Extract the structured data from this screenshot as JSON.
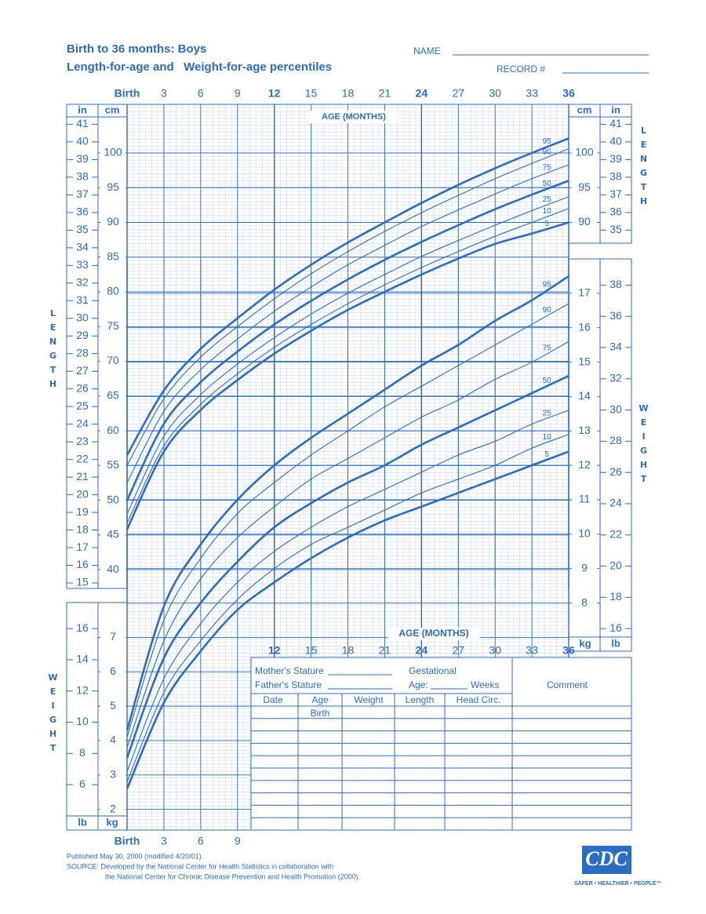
{
  "header": {
    "title": "Birth to 36 months: Boys",
    "subtitle": "Length-for-age and   Weight-for-age percentiles",
    "name_label": "NAME",
    "record_label": "RECORD #"
  },
  "chart_data": [
    {
      "type": "line",
      "x_label": "AGE (MONTHS)",
      "y_label": "LENGTH",
      "y_unit": "cm",
      "y2_unit": "in",
      "x": [
        0,
        3,
        6,
        9,
        12,
        15,
        18,
        21,
        24,
        27,
        30,
        33,
        36
      ],
      "xlim": [
        0,
        36
      ],
      "xticks": [
        {
          "value": 0,
          "label": "Birth"
        },
        3,
        6,
        9,
        12,
        15,
        18,
        21,
        24,
        27,
        30,
        33,
        36
      ],
      "ylim": [
        37.3,
        107.0
      ],
      "yticks": [
        40,
        45,
        50,
        55,
        60,
        65,
        70,
        75,
        80,
        85,
        90,
        95,
        100
      ],
      "yticks_right": [
        90,
        95,
        100
      ],
      "y2lim": [
        14.69,
        42.13
      ],
      "y2ticks": [
        15,
        16,
        17,
        18,
        19,
        20,
        21,
        22,
        23,
        24,
        25,
        26,
        27,
        28,
        29,
        30,
        31,
        32,
        33,
        34,
        35,
        36,
        37,
        38,
        39,
        40,
        41
      ],
      "y2ticks_right": [
        35,
        36,
        37,
        38,
        39,
        40,
        41
      ],
      "grid": true,
      "series": [
        {
          "name": "95",
          "color": "#2b6cc4",
          "bold": true,
          "values": [
            56.5,
            65.8,
            71.8,
            76.2,
            80.3,
            83.9,
            87.1,
            90.0,
            92.8,
            95.4,
            97.8,
            100.0,
            102.1
          ]
        },
        {
          "name": "90",
          "color": "#2b6cc4",
          "bold": false,
          "values": [
            55.0,
            64.6,
            70.6,
            75.0,
            79.0,
            82.6,
            85.8,
            88.7,
            91.4,
            93.9,
            96.3,
            98.5,
            100.6
          ]
        },
        {
          "name": "75",
          "color": "#2b6cc4",
          "bold": false,
          "values": [
            52.5,
            62.8,
            68.8,
            73.2,
            77.2,
            80.7,
            83.9,
            86.7,
            89.4,
            91.8,
            94.1,
            96.3,
            98.3
          ]
        },
        {
          "name": "50",
          "color": "#2b6cc4",
          "bold": true,
          "values": [
            50.0,
            61.0,
            67.0,
            71.4,
            75.3,
            78.7,
            81.8,
            84.6,
            87.2,
            89.6,
            91.9,
            94.0,
            96.0
          ]
        },
        {
          "name": "25",
          "color": "#2b6cc4",
          "bold": false,
          "values": [
            48.0,
            59.2,
            65.2,
            69.6,
            73.4,
            76.8,
            79.8,
            82.5,
            85.1,
            87.4,
            89.6,
            91.7,
            93.7
          ]
        },
        {
          "name": "10",
          "color": "#2b6cc4",
          "bold": false,
          "values": [
            46.7,
            57.8,
            63.8,
            68.2,
            72.0,
            75.3,
            78.3,
            81.0,
            83.5,
            85.8,
            88.0,
            90.0,
            92.0
          ]
        },
        {
          "name": "5",
          "color": "#2b6cc4",
          "bold": true,
          "values": [
            45.8,
            57.0,
            63.0,
            67.3,
            71.1,
            74.4,
            77.4,
            80.0,
            82.5,
            84.8,
            86.9,
            88.4,
            90.0
          ]
        }
      ]
    },
    {
      "type": "line",
      "x_label": "AGE (MONTHS)",
      "y_label": "WEIGHT",
      "y_unit": "kg",
      "y2_unit": "lb",
      "x": [
        0,
        3,
        6,
        9,
        12,
        15,
        18,
        21,
        24,
        27,
        30,
        33,
        36
      ],
      "xlim": [
        0,
        36
      ],
      "xticks": [
        {
          "value": 0,
          "label": "Birth"
        },
        3,
        6,
        9,
        12,
        15,
        18,
        21,
        24,
        27,
        30,
        33,
        36
      ],
      "ylim": [
        1.4,
        18.0
      ],
      "yticks": [
        2,
        3,
        4,
        5,
        6,
        7
      ],
      "yticks_right": [
        8,
        9,
        10,
        11,
        12,
        13,
        14,
        15,
        16,
        17
      ],
      "y2lim": [
        3.09,
        39.68
      ],
      "y2ticks": [
        6,
        8,
        10,
        12,
        14,
        16
      ],
      "y2ticks_right": [
        16,
        18,
        20,
        22,
        24,
        26,
        28,
        30,
        32,
        34,
        36,
        38
      ],
      "grid": true,
      "series": [
        {
          "name": "95",
          "color": "#2b6cc4",
          "bold": true,
          "values": [
            4.3,
            7.9,
            9.7,
            11.0,
            12.0,
            12.8,
            13.5,
            14.2,
            14.9,
            15.5,
            16.2,
            16.8,
            17.5
          ]
        },
        {
          "name": "90",
          "color": "#2b6cc4",
          "bold": false,
          "values": [
            4.1,
            7.5,
            9.3,
            10.6,
            11.5,
            12.3,
            13.0,
            13.7,
            14.3,
            14.9,
            15.5,
            16.1,
            16.7
          ]
        },
        {
          "name": "75",
          "color": "#2b6cc4",
          "bold": false,
          "values": [
            3.8,
            6.9,
            8.7,
            9.9,
            10.8,
            11.6,
            12.2,
            12.8,
            13.4,
            13.9,
            14.5,
            15.0,
            15.6
          ]
        },
        {
          "name": "50",
          "color": "#2b6cc4",
          "bold": true,
          "values": [
            3.5,
            6.4,
            8.0,
            9.2,
            10.2,
            10.9,
            11.5,
            12.0,
            12.6,
            13.1,
            13.6,
            14.1,
            14.6
          ]
        },
        {
          "name": "25",
          "color": "#2b6cc4",
          "bold": false,
          "values": [
            3.1,
            5.8,
            7.4,
            8.6,
            9.5,
            10.2,
            10.8,
            11.3,
            11.8,
            12.3,
            12.7,
            13.2,
            13.6
          ]
        },
        {
          "name": "10",
          "color": "#2b6cc4",
          "bold": false,
          "values": [
            2.8,
            5.4,
            6.9,
            8.1,
            9.0,
            9.7,
            10.2,
            10.7,
            11.2,
            11.6,
            12.0,
            12.5,
            12.9
          ]
        },
        {
          "name": "5",
          "color": "#2b6cc4",
          "bold": true,
          "values": [
            2.6,
            5.1,
            6.6,
            7.8,
            8.6,
            9.3,
            9.9,
            10.4,
            10.8,
            11.2,
            11.6,
            12.0,
            12.4
          ]
        }
      ]
    }
  ],
  "form": {
    "mothers_stature": "Mother's Stature",
    "gestational": "Gestational",
    "fathers_stature": "Father's Stature",
    "age": "Age:",
    "weeks": "Weeks",
    "comment": "Comment",
    "columns": [
      "Date",
      "Age",
      "Weight",
      "Length",
      "Head Circ."
    ],
    "first_age": "Birth"
  },
  "footer": {
    "published": "Published May 30, 2000 (modified 4/20/01).",
    "source": "SOURCE: Developed by the National Center for Health Statistics in collaboration with",
    "source_cont": "the National Center for Chronic Disease Prevention and Health Promotion (2000).",
    "logo": "CDC",
    "tagline": "SAFER • HEALTHIER • PEOPLE™"
  }
}
